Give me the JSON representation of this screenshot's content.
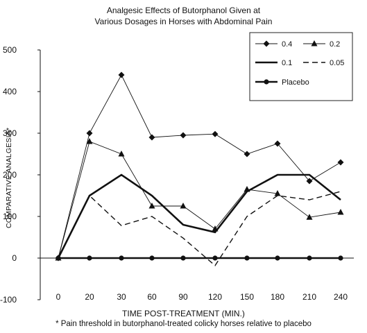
{
  "chart_data": {
    "type": "line",
    "title": [
      "Analgesic Effects of Butorphanol Given at",
      "Various Dosages in Horses with Abdominal Pain"
    ],
    "xlabel": "TIME POST-TREATMENT (MIN.)",
    "ylabel": "COMPARATIVE ANALGESIA*",
    "footnote": "* Pain threshold in butorphanol-treated colicky horses relative to placebo",
    "categories": [
      "0",
      "20",
      "30",
      "60",
      "90",
      "120",
      "150",
      "180",
      "210",
      "240"
    ],
    "yticks": [
      "500",
      "400",
      "300",
      "200",
      "100",
      "0",
      "-100"
    ],
    "ylim": [
      -100,
      500
    ],
    "grid": false,
    "legend_position": "top-right",
    "series": [
      {
        "name": "0.4",
        "values": [
          0,
          300,
          440,
          290,
          295,
          298,
          250,
          275,
          185,
          230
        ],
        "style": "thin",
        "marker": "diamond",
        "color": "#111111"
      },
      {
        "name": "0.2",
        "values": [
          0,
          280,
          250,
          125,
          125,
          70,
          165,
          155,
          98,
          110
        ],
        "style": "thin",
        "marker": "triangle",
        "color": "#111111"
      },
      {
        "name": "0.1",
        "values": [
          0,
          150,
          200,
          150,
          80,
          62,
          160,
          200,
          200,
          140
        ],
        "style": "thick",
        "marker": "none",
        "color": "#111111"
      },
      {
        "name": "0.05",
        "values": [
          0,
          150,
          78,
          100,
          48,
          -18,
          100,
          150,
          140,
          160
        ],
        "style": "dashed",
        "marker": "none",
        "color": "#111111"
      },
      {
        "name": "Placebo",
        "values": [
          0,
          0,
          0,
          0,
          0,
          0,
          0,
          0,
          0,
          0
        ],
        "style": "thick",
        "marker": "circle",
        "color": "#111111"
      }
    ]
  }
}
